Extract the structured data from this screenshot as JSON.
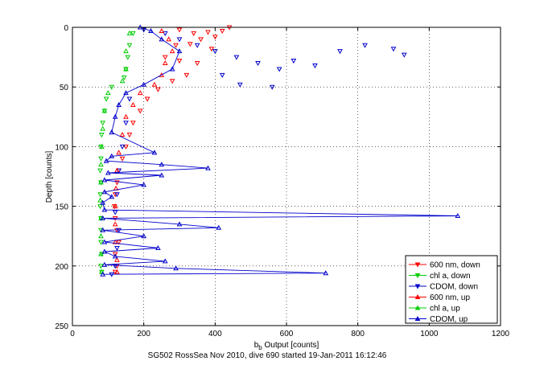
{
  "chart_data": {
    "type": "scatter",
    "title": "",
    "caption": "SG502 RossSea Nov 2010, dive 690 started 19-Jan-2011 16:12:46",
    "xlabel_main": "b",
    "xlabel_sub": "b",
    "xlabel_rest": " Output [counts]",
    "ylabel": "Depth [counts]",
    "xlim": [
      0,
      1200
    ],
    "ylim": [
      0,
      250
    ],
    "y_reversed": true,
    "x_ticks": [
      "0",
      "200",
      "400",
      "600",
      "800",
      "1000",
      "1200"
    ],
    "y_ticks": [
      "0",
      "50",
      "100",
      "150",
      "200",
      "250"
    ],
    "grid": true,
    "legend_position": "bottom-right",
    "series": [
      {
        "name": "600 nm, down",
        "color": "#ff0000",
        "marker": "triangle-down",
        "points": [
          [
            300,
            2
          ],
          [
            340,
            5
          ],
          [
            380,
            4
          ],
          [
            420,
            3
          ],
          [
            440,
            0
          ],
          [
            360,
            10
          ],
          [
            400,
            8
          ],
          [
            290,
            15
          ],
          [
            330,
            14
          ],
          [
            390,
            18
          ],
          [
            260,
            25
          ],
          [
            300,
            28
          ],
          [
            350,
            30
          ],
          [
            320,
            40
          ],
          [
            280,
            45
          ],
          [
            240,
            52
          ],
          [
            210,
            60
          ],
          [
            190,
            70
          ],
          [
            170,
            80
          ],
          [
            160,
            90
          ],
          [
            150,
            100
          ],
          [
            140,
            110
          ],
          [
            130,
            120
          ],
          [
            125,
            130
          ],
          [
            120,
            140
          ],
          [
            118,
            150
          ],
          [
            120,
            160
          ],
          [
            125,
            170
          ],
          [
            130,
            180
          ],
          [
            120,
            190
          ],
          [
            125,
            200
          ],
          [
            120,
            205
          ]
        ]
      },
      {
        "name": "chl a, down",
        "color": "#00cc00",
        "marker": "triangle-down",
        "points": [
          [
            170,
            5
          ],
          [
            160,
            15
          ],
          [
            155,
            25
          ],
          [
            150,
            35
          ],
          [
            145,
            42
          ],
          [
            110,
            50
          ],
          [
            95,
            60
          ],
          [
            90,
            70
          ],
          [
            85,
            80
          ],
          [
            82,
            90
          ],
          [
            80,
            100
          ],
          [
            80,
            110
          ],
          [
            78,
            120
          ],
          [
            80,
            130
          ],
          [
            78,
            140
          ],
          [
            78,
            150
          ],
          [
            80,
            160
          ],
          [
            80,
            170
          ],
          [
            80,
            180
          ],
          [
            82,
            190
          ],
          [
            80,
            200
          ],
          [
            82,
            205
          ]
        ]
      },
      {
        "name": "CDOM, down",
        "color": "#0000cc",
        "marker": "triangle-down",
        "points": [
          [
            200,
            2
          ],
          [
            260,
            5
          ],
          [
            300,
            10
          ],
          [
            350,
            15
          ],
          [
            400,
            20
          ],
          [
            460,
            25
          ],
          [
            520,
            30
          ],
          [
            580,
            35
          ],
          [
            620,
            28
          ],
          [
            680,
            32
          ],
          [
            750,
            20
          ],
          [
            820,
            15
          ],
          [
            900,
            18
          ],
          [
            930,
            23
          ],
          [
            420,
            40
          ],
          [
            470,
            48
          ],
          [
            560,
            50
          ],
          [
            160,
            60
          ],
          [
            150,
            80
          ],
          [
            140,
            100
          ],
          [
            130,
            120
          ],
          [
            125,
            140
          ],
          [
            120,
            155
          ],
          [
            130,
            170
          ],
          [
            125,
            185
          ],
          [
            120,
            200
          ],
          [
            110,
            207
          ]
        ]
      },
      {
        "name": "600 nm, up",
        "color": "#ff0000",
        "marker": "triangle-up",
        "points": [
          [
            250,
            3
          ],
          [
            270,
            10
          ],
          [
            280,
            20
          ],
          [
            260,
            30
          ],
          [
            250,
            40
          ],
          [
            230,
            48
          ],
          [
            190,
            55
          ],
          [
            170,
            65
          ],
          [
            150,
            75
          ],
          [
            140,
            90
          ],
          [
            130,
            105
          ],
          [
            125,
            120
          ],
          [
            122,
            135
          ],
          [
            120,
            150
          ],
          [
            120,
            165
          ],
          [
            120,
            180
          ],
          [
            125,
            195
          ],
          [
            125,
            205
          ]
        ]
      },
      {
        "name": "chl a, up",
        "color": "#00cc00",
        "marker": "triangle-up",
        "points": [
          [
            160,
            5
          ],
          [
            150,
            20
          ],
          [
            150,
            35
          ],
          [
            140,
            45
          ],
          [
            100,
            55
          ],
          [
            90,
            70
          ],
          [
            85,
            85
          ],
          [
            82,
            100
          ],
          [
            80,
            115
          ],
          [
            80,
            130
          ],
          [
            78,
            145
          ],
          [
            80,
            160
          ],
          [
            80,
            175
          ],
          [
            80,
            190
          ],
          [
            82,
            205
          ]
        ]
      },
      {
        "name": "CDOM, up",
        "color": "#0000cc",
        "marker": "triangle-up",
        "line": true,
        "points": [
          [
            190,
            0
          ],
          [
            220,
            3
          ],
          [
            250,
            10
          ],
          [
            300,
            20
          ],
          [
            280,
            35
          ],
          [
            200,
            48
          ],
          [
            150,
            55
          ],
          [
            130,
            65
          ],
          [
            120,
            75
          ],
          [
            110,
            88
          ],
          [
            230,
            105
          ],
          [
            110,
            108
          ],
          [
            95,
            112
          ],
          [
            250,
            115
          ],
          [
            380,
            118
          ],
          [
            100,
            122
          ],
          [
            250,
            124
          ],
          [
            90,
            128
          ],
          [
            200,
            132
          ],
          [
            90,
            138
          ],
          [
            110,
            142
          ],
          [
            85,
            147
          ],
          [
            90,
            153
          ],
          [
            1080,
            158
          ],
          [
            85,
            160
          ],
          [
            300,
            165
          ],
          [
            410,
            168
          ],
          [
            85,
            170
          ],
          [
            200,
            175
          ],
          [
            90,
            180
          ],
          [
            240,
            185
          ],
          [
            90,
            188
          ],
          [
            120,
            192
          ],
          [
            260,
            196
          ],
          [
            90,
            199
          ],
          [
            290,
            202
          ],
          [
            710,
            206
          ],
          [
            85,
            207
          ]
        ]
      }
    ]
  }
}
